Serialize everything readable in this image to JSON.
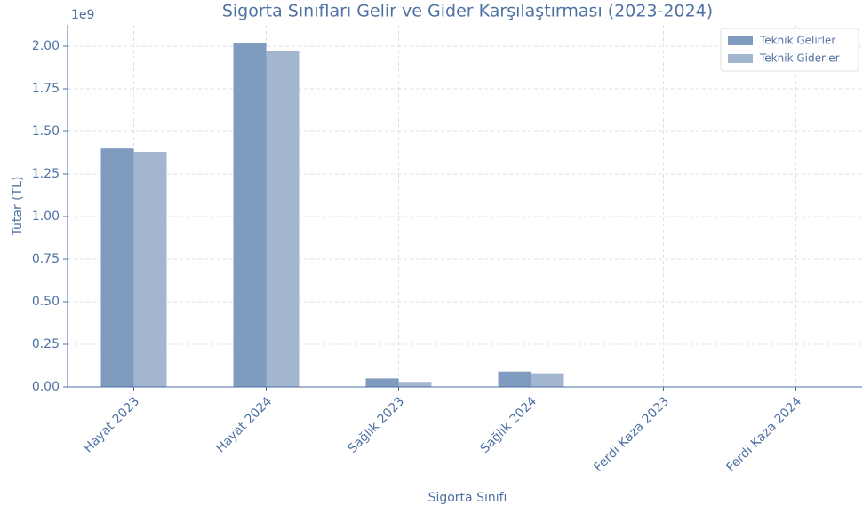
{
  "chart_data": {
    "type": "bar",
    "title": "Sigorta Sınıfları Gelir ve Gider Karşılaştırması (2023-2024)",
    "x_label": "Sigorta Sınıfı",
    "y_label": "Tutar (TL)",
    "y_offset_label": "1e9",
    "categories": [
      "Hayat 2023",
      "Hayat 2024",
      "Sağlık 2023",
      "Sağlık 2024",
      "Ferdi Kaza 2023",
      "Ferdi Kaza 2024"
    ],
    "series": [
      {
        "name": "Teknik Gelirler",
        "color": "#7f9bbf",
        "values": [
          1.4,
          2.02,
          0.05,
          0.09,
          0,
          0
        ]
      },
      {
        "name": "Teknik Giderler",
        "color": "#a3b6cf",
        "values": [
          1.38,
          1.97,
          0.03,
          0.08,
          0,
          0
        ]
      }
    ],
    "ylim": [
      0,
      2.125
    ],
    "yticks": [
      {
        "value": 0,
        "label": "0.00"
      },
      {
        "value": 0.25,
        "label": "0.25"
      },
      {
        "value": 0.5,
        "label": "0.50"
      },
      {
        "value": 0.75,
        "label": "0.75"
      },
      {
        "value": 1,
        "label": "1.00"
      },
      {
        "value": 1.25,
        "label": "1.25"
      },
      {
        "value": 1.5,
        "label": "1.50"
      },
      {
        "value": 1.75,
        "label": "1.75"
      },
      {
        "value": 2,
        "label": "2.00"
      }
    ],
    "grid": true,
    "legend": "upper right"
  }
}
